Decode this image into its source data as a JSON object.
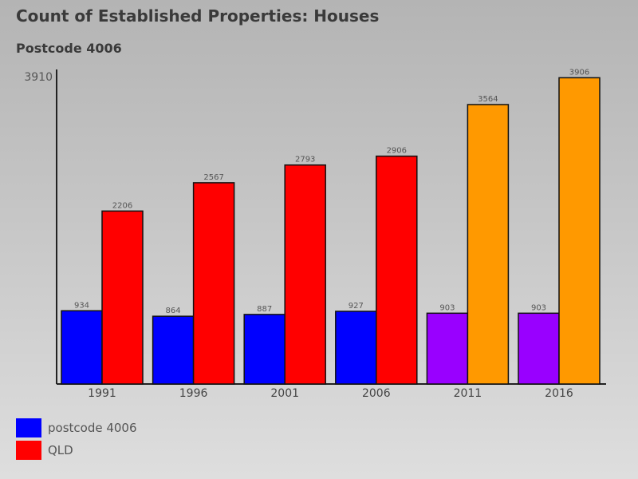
{
  "title": "Count of Established Properties: Houses",
  "subtitle": "Postcode 4006",
  "legend": [
    {
      "label": "postcode 4006",
      "color": "#0000ff"
    },
    {
      "label": "QLD",
      "color": "#ff0000"
    }
  ],
  "chart_data": {
    "type": "bar",
    "title": "Count of Established Properties: Houses",
    "subtitle": "Postcode 4006",
    "ylim": [
      0,
      3910
    ],
    "ytick_labels": [
      "3910"
    ],
    "grid": false,
    "categories": [
      "1991",
      "1996",
      "2001",
      "2006",
      "2011",
      "2016"
    ],
    "series": [
      {
        "name": "postcode 4006",
        "values": [
          934,
          864,
          887,
          927,
          903,
          903
        ],
        "colors": [
          "#0000ff",
          "#0000ff",
          "#0000ff",
          "#0000ff",
          "#9900ff",
          "#9900ff"
        ]
      },
      {
        "name": "QLD",
        "values": [
          2206,
          2567,
          2793,
          2906,
          3564,
          3906
        ],
        "colors": [
          "#ff0000",
          "#ff0000",
          "#ff0000",
          "#ff0000",
          "#ff9900",
          "#ff9900"
        ]
      }
    ]
  }
}
